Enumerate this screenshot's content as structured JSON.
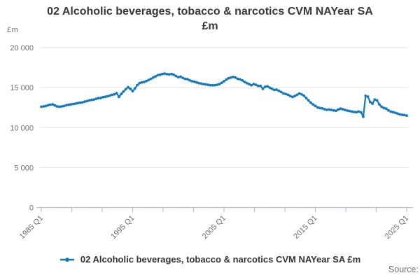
{
  "title_line1": "02 Alcoholic beverages, tobacco & narcotics CVM NAYear SA",
  "title_line2": "£m",
  "source_label": "Source:",
  "legend": {
    "label": "02 Alcoholic beverages, tobacco & narcotics CVM NAYear SA £m"
  },
  "colors": {
    "line": "#1478be",
    "grid": "#e2e2e2",
    "axis": "#b8c1d9",
    "muted_text": "#6e6e6e",
    "title_text": "#383838"
  },
  "chart_data": {
    "type": "line",
    "title": "02 Alcoholic beverages, tobacco & narcotics CVM NAYear SA £m",
    "xlabel": "",
    "ylabel": "£m",
    "ylim": [
      0,
      20000
    ],
    "yticks": [
      0,
      5000,
      10000,
      15000,
      20000
    ],
    "ytick_labels": [
      "0",
      "5 000",
      "10 000",
      "15 000",
      "20 000"
    ],
    "x_tick_labels": [
      "1985 Q1",
      "1995 Q1",
      "2005 Q1",
      "2015 Q1",
      "2025 Q1"
    ],
    "x_total_ticks": 13,
    "grid": "horizontal",
    "legend_position": "bottom",
    "series": [
      {
        "name": "02 Alcoholic beverages, tobacco & narcotics CVM NAYear SA £m",
        "frequency": "quarterly",
        "start": "1985 Q1",
        "end": "2025 Q1",
        "values": [
          12600,
          12650,
          12700,
          12800,
          12870,
          12900,
          12750,
          12650,
          12600,
          12650,
          12700,
          12800,
          12850,
          12900,
          12950,
          13000,
          13070,
          13100,
          13150,
          13250,
          13300,
          13400,
          13450,
          13500,
          13600,
          13680,
          13700,
          13800,
          13850,
          13920,
          14000,
          14100,
          14150,
          14300,
          13830,
          14200,
          14500,
          14800,
          15050,
          14850,
          14560,
          14900,
          15300,
          15550,
          15650,
          15700,
          15820,
          15950,
          16100,
          16250,
          16400,
          16550,
          16600,
          16700,
          16750,
          16680,
          16650,
          16700,
          16600,
          16450,
          16300,
          16350,
          16200,
          16100,
          16050,
          15900,
          15800,
          15730,
          15650,
          15550,
          15500,
          15440,
          15400,
          15350,
          15300,
          15290,
          15300,
          15350,
          15440,
          15600,
          15800,
          16000,
          16170,
          16250,
          16320,
          16250,
          16100,
          16030,
          15900,
          15700,
          15550,
          15440,
          15300,
          15440,
          15350,
          15200,
          15200,
          14850,
          15100,
          15150,
          15000,
          14850,
          14710,
          14750,
          14600,
          14450,
          14270,
          14200,
          14100,
          13950,
          13830,
          13950,
          14100,
          14270,
          14150,
          13980,
          13700,
          13400,
          13100,
          12900,
          12700,
          12520,
          12450,
          12400,
          12300,
          12220,
          12250,
          12200,
          12150,
          12100,
          12250,
          12370,
          12300,
          12200,
          12120,
          12070,
          12000,
          11950,
          11930,
          12000,
          11900,
          11350,
          13970,
          13860,
          13200,
          13000,
          13500,
          13400,
          12900,
          12600,
          12450,
          12370,
          12150,
          12000,
          11930,
          11850,
          11750,
          11650,
          11600,
          11560,
          11490
        ]
      }
    ]
  }
}
